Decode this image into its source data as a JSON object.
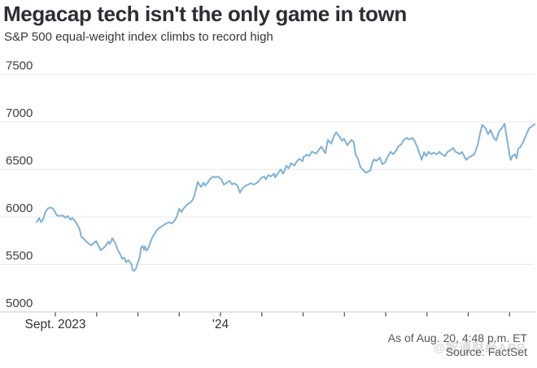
{
  "header": {
    "title": "Megacap tech isn't the only game in town",
    "subtitle": "S&P 500 equal-weight index climbs to record high"
  },
  "footer": {
    "as_of": "As of Aug. 20, 4:48 p.m. ET",
    "source": "Source: FactSet",
    "watermark": "@智通财经APP"
  },
  "colors": {
    "line": "#7fb1d7",
    "grid": "#e9eaeb",
    "axis": "#d2d4d6",
    "tick": "#55585c",
    "axis_text": "#3d4043",
    "x_text": "#2e3136"
  },
  "chart_data": {
    "type": "line",
    "title": "Megacap tech isn't the only game in town",
    "subtitle": "S&P 500 equal-weight index climbs to record high",
    "x_unit": "months since Sept 1, 2023 (negative = late Aug 2023; chart runs through Aug 20, 2024)",
    "ylim": [
      5000,
      7500
    ],
    "y_ticks": [
      7500,
      7000,
      6500,
      6000,
      5500,
      5000
    ],
    "x_tick_months": [
      0,
      1,
      2,
      3,
      4,
      5,
      6,
      7,
      8,
      9,
      10,
      11
    ],
    "x_tick_labels": {
      "0": "Sept. 2023",
      "4": "'24"
    },
    "grid": "horizontal",
    "legend": "none",
    "series": [
      {
        "name": "S&P 500 equal-weight index",
        "points": [
          [
            -0.45,
            5945
          ],
          [
            -0.39,
            5990
          ],
          [
            -0.35,
            5945
          ],
          [
            -0.3,
            5970
          ],
          [
            -0.24,
            6050
          ],
          [
            -0.18,
            6090
          ],
          [
            -0.12,
            6100
          ],
          [
            -0.06,
            6090
          ],
          [
            -0.02,
            6060
          ],
          [
            0.04,
            6015
          ],
          [
            0.1,
            6010
          ],
          [
            0.18,
            6015
          ],
          [
            0.24,
            5990
          ],
          [
            0.3,
            6010
          ],
          [
            0.37,
            5970
          ],
          [
            0.41,
            5990
          ],
          [
            0.47,
            5960
          ],
          [
            0.53,
            5920
          ],
          [
            0.59,
            5870
          ],
          [
            0.63,
            5790
          ],
          [
            0.69,
            5770
          ],
          [
            0.75,
            5740
          ],
          [
            0.81,
            5720
          ],
          [
            0.87,
            5700
          ],
          [
            0.93,
            5725
          ],
          [
            0.99,
            5745
          ],
          [
            1.04,
            5700
          ],
          [
            1.1,
            5650
          ],
          [
            1.16,
            5670
          ],
          [
            1.22,
            5695
          ],
          [
            1.28,
            5740
          ],
          [
            1.32,
            5715
          ],
          [
            1.38,
            5775
          ],
          [
            1.46,
            5715
          ],
          [
            1.52,
            5645
          ],
          [
            1.58,
            5600
          ],
          [
            1.62,
            5560
          ],
          [
            1.67,
            5570
          ],
          [
            1.71,
            5525
          ],
          [
            1.77,
            5545
          ],
          [
            1.85,
            5500
          ],
          [
            1.87,
            5440
          ],
          [
            1.91,
            5430
          ],
          [
            1.95,
            5455
          ],
          [
            1.97,
            5480
          ],
          [
            2.05,
            5585
          ],
          [
            2.07,
            5670
          ],
          [
            2.11,
            5695
          ],
          [
            2.15,
            5655
          ],
          [
            2.17,
            5690
          ],
          [
            2.21,
            5645
          ],
          [
            2.25,
            5670
          ],
          [
            2.31,
            5740
          ],
          [
            2.34,
            5775
          ],
          [
            2.4,
            5820
          ],
          [
            2.46,
            5860
          ],
          [
            2.52,
            5885
          ],
          [
            2.58,
            5900
          ],
          [
            2.64,
            5920
          ],
          [
            2.7,
            5935
          ],
          [
            2.76,
            5945
          ],
          [
            2.82,
            5930
          ],
          [
            2.88,
            5955
          ],
          [
            2.94,
            6000
          ],
          [
            3.0,
            6085
          ],
          [
            3.05,
            6050
          ],
          [
            3.11,
            6090
          ],
          [
            3.19,
            6130
          ],
          [
            3.25,
            6145
          ],
          [
            3.31,
            6170
          ],
          [
            3.35,
            6200
          ],
          [
            3.41,
            6300
          ],
          [
            3.45,
            6370
          ],
          [
            3.49,
            6340
          ],
          [
            3.53,
            6315
          ],
          [
            3.59,
            6360
          ],
          [
            3.63,
            6330
          ],
          [
            3.68,
            6355
          ],
          [
            3.74,
            6395
          ],
          [
            3.82,
            6425
          ],
          [
            3.88,
            6415
          ],
          [
            3.94,
            6425
          ],
          [
            4.02,
            6395
          ],
          [
            4.08,
            6340
          ],
          [
            4.14,
            6355
          ],
          [
            4.22,
            6380
          ],
          [
            4.28,
            6340
          ],
          [
            4.33,
            6355
          ],
          [
            4.41,
            6330
          ],
          [
            4.47,
            6255
          ],
          [
            4.53,
            6300
          ],
          [
            4.61,
            6330
          ],
          [
            4.67,
            6340
          ],
          [
            4.73,
            6355
          ],
          [
            4.81,
            6340
          ],
          [
            4.87,
            6355
          ],
          [
            4.93,
            6380
          ],
          [
            5.0,
            6415
          ],
          [
            5.06,
            6425
          ],
          [
            5.1,
            6395
          ],
          [
            5.16,
            6440
          ],
          [
            5.22,
            6425
          ],
          [
            5.3,
            6455
          ],
          [
            5.32,
            6415
          ],
          [
            5.4,
            6465
          ],
          [
            5.46,
            6500
          ],
          [
            5.52,
            6455
          ],
          [
            5.6,
            6540
          ],
          [
            5.65,
            6510
          ],
          [
            5.71,
            6565
          ],
          [
            5.79,
            6540
          ],
          [
            5.85,
            6585
          ],
          [
            5.91,
            6610
          ],
          [
            5.99,
            6585
          ],
          [
            6.01,
            6630
          ],
          [
            6.09,
            6655
          ],
          [
            6.15,
            6640
          ],
          [
            6.21,
            6685
          ],
          [
            6.25,
            6680
          ],
          [
            6.31,
            6665
          ],
          [
            6.34,
            6680
          ],
          [
            6.44,
            6740
          ],
          [
            6.54,
            6670
          ],
          [
            6.6,
            6810
          ],
          [
            6.68,
            6770
          ],
          [
            6.74,
            6845
          ],
          [
            6.8,
            6890
          ],
          [
            6.88,
            6845
          ],
          [
            6.94,
            6800
          ],
          [
            6.99,
            6825
          ],
          [
            7.07,
            6755
          ],
          [
            7.17,
            6810
          ],
          [
            7.23,
            6785
          ],
          [
            7.27,
            6655
          ],
          [
            7.33,
            6610
          ],
          [
            7.39,
            6525
          ],
          [
            7.47,
            6485
          ],
          [
            7.53,
            6465
          ],
          [
            7.63,
            6490
          ],
          [
            7.68,
            6575
          ],
          [
            7.72,
            6605
          ],
          [
            7.78,
            6590
          ],
          [
            7.86,
            6625
          ],
          [
            7.92,
            6555
          ],
          [
            7.98,
            6570
          ],
          [
            8.06,
            6640
          ],
          [
            8.12,
            6685
          ],
          [
            8.18,
            6660
          ],
          [
            8.26,
            6700
          ],
          [
            8.31,
            6745
          ],
          [
            8.37,
            6760
          ],
          [
            8.45,
            6815
          ],
          [
            8.51,
            6830
          ],
          [
            8.57,
            6815
          ],
          [
            8.65,
            6830
          ],
          [
            8.71,
            6790
          ],
          [
            8.77,
            6730
          ],
          [
            8.83,
            6655
          ],
          [
            8.87,
            6600
          ],
          [
            8.93,
            6680
          ],
          [
            8.98,
            6640
          ],
          [
            9.04,
            6685
          ],
          [
            9.1,
            6660
          ],
          [
            9.16,
            6675
          ],
          [
            9.24,
            6660
          ],
          [
            9.3,
            6685
          ],
          [
            9.36,
            6660
          ],
          [
            9.44,
            6640
          ],
          [
            9.5,
            6685
          ],
          [
            9.56,
            6700
          ],
          [
            9.64,
            6725
          ],
          [
            9.69,
            6685
          ],
          [
            9.75,
            6675
          ],
          [
            9.79,
            6660
          ],
          [
            9.85,
            6685
          ],
          [
            9.93,
            6615
          ],
          [
            9.95,
            6600
          ],
          [
            10.03,
            6630
          ],
          [
            10.09,
            6645
          ],
          [
            10.15,
            6660
          ],
          [
            10.23,
            6760
          ],
          [
            10.29,
            6885
          ],
          [
            10.34,
            6970
          ],
          [
            10.42,
            6930
          ],
          [
            10.48,
            6870
          ],
          [
            10.54,
            6915
          ],
          [
            10.62,
            6830
          ],
          [
            10.68,
            6805
          ],
          [
            10.74,
            6895
          ],
          [
            10.82,
            6940
          ],
          [
            10.88,
            6980
          ],
          [
            10.94,
            6815
          ],
          [
            11.01,
            6630
          ],
          [
            11.03,
            6600
          ],
          [
            11.07,
            6640
          ],
          [
            11.13,
            6660
          ],
          [
            11.17,
            6615
          ],
          [
            11.21,
            6715
          ],
          [
            11.27,
            6740
          ],
          [
            11.33,
            6790
          ],
          [
            11.41,
            6870
          ],
          [
            11.47,
            6930
          ],
          [
            11.53,
            6950
          ],
          [
            11.61,
            6975
          ]
        ]
      }
    ]
  }
}
